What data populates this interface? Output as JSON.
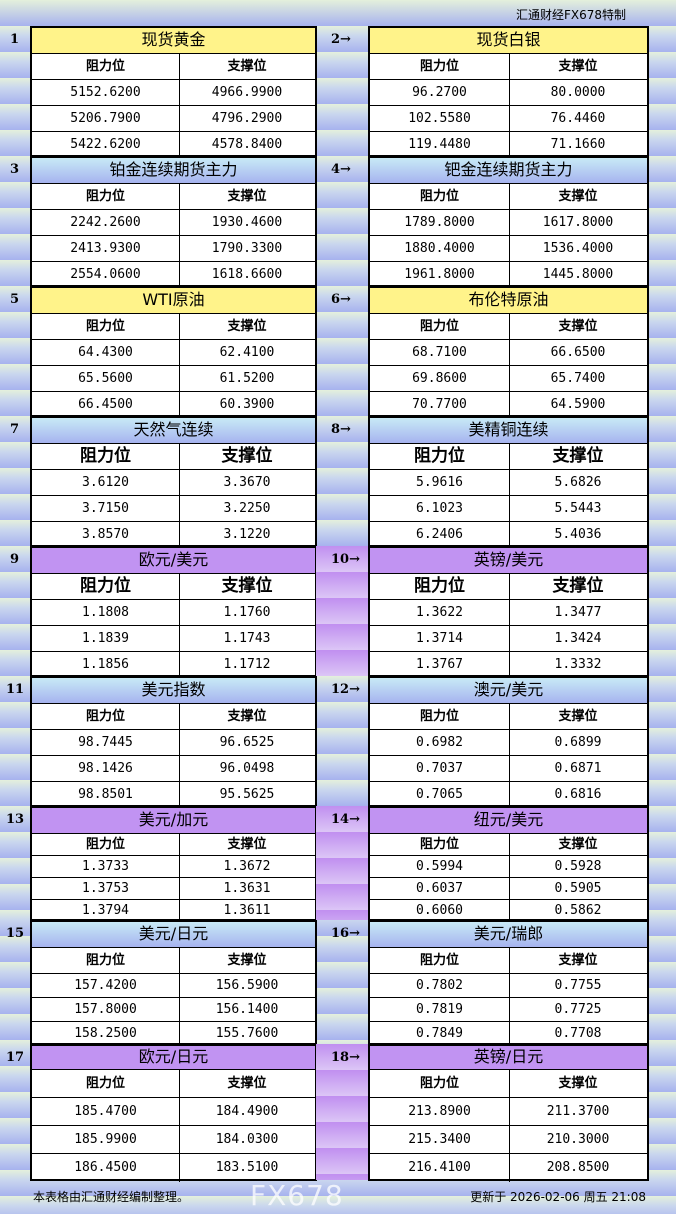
{
  "brand": "汇通财经FX678特制",
  "col_headers": [
    "阻力位",
    "支撑位"
  ],
  "arrow": "→",
  "sections": [
    {
      "num": "1",
      "title": "现货黄金",
      "color": "#fff38a",
      "rows": [
        [
          "5152.6200",
          "4966.9900"
        ],
        [
          "5206.7900",
          "4796.2900"
        ],
        [
          "5422.6200",
          "4578.8400"
        ]
      ]
    },
    {
      "num": "2",
      "title": "现货白银",
      "color": "#fff38a",
      "rows": [
        [
          "96.2700",
          "80.0000"
        ],
        [
          "102.5580",
          "76.4460"
        ],
        [
          "119.4480",
          "71.1660"
        ]
      ]
    },
    {
      "num": "3",
      "title": "铂金连续期货主力",
      "color": "#b6cdf2",
      "rows": [
        [
          "2242.2600",
          "1930.4600"
        ],
        [
          "2413.9300",
          "1790.3300"
        ],
        [
          "2554.0600",
          "1618.6600"
        ]
      ]
    },
    {
      "num": "4",
      "title": "钯金连续期货主力",
      "color": "#b6cdf2",
      "rows": [
        [
          "1789.8000",
          "1617.8000"
        ],
        [
          "1880.4000",
          "1536.4000"
        ],
        [
          "1961.8000",
          "1445.8000"
        ]
      ]
    },
    {
      "num": "5",
      "title": "WTI原油",
      "color": "#fff38a",
      "rows": [
        [
          "64.4300",
          "62.4100"
        ],
        [
          "65.5600",
          "61.5200"
        ],
        [
          "66.4500",
          "60.3900"
        ]
      ]
    },
    {
      "num": "6",
      "title": "布伦特原油",
      "color": "#fff38a",
      "rows": [
        [
          "68.7100",
          "66.6500"
        ],
        [
          "69.8600",
          "65.7400"
        ],
        [
          "70.7700",
          "64.5900"
        ]
      ]
    },
    {
      "num": "7",
      "title": "天然气连续",
      "color": "#b6cdf2",
      "rows": [
        [
          "3.6120",
          "3.3670"
        ],
        [
          "3.7150",
          "3.2250"
        ],
        [
          "3.8570",
          "3.1220"
        ]
      ]
    },
    {
      "num": "8",
      "title": "美精铜连续",
      "color": "#b6cdf2",
      "rows": [
        [
          "5.9616",
          "5.6826"
        ],
        [
          "6.1023",
          "5.5443"
        ],
        [
          "6.2406",
          "5.4036"
        ]
      ]
    },
    {
      "num": "9",
      "title": "欧元/美元",
      "color": "#c193f2",
      "rows": [
        [
          "1.1808",
          "1.1760"
        ],
        [
          "1.1839",
          "1.1743"
        ],
        [
          "1.1856",
          "1.1712"
        ]
      ]
    },
    {
      "num": "10",
      "title": "英镑/美元",
      "color": "#c193f2",
      "rows": [
        [
          "1.3622",
          "1.3477"
        ],
        [
          "1.3714",
          "1.3424"
        ],
        [
          "1.3767",
          "1.3332"
        ]
      ]
    },
    {
      "num": "11",
      "title": "美元指数",
      "color": "#b6cdf2",
      "rows": [
        [
          "98.7445",
          "96.6525"
        ],
        [
          "98.1426",
          "96.0498"
        ],
        [
          "98.8501",
          "95.5625"
        ]
      ]
    },
    {
      "num": "12",
      "title": "澳元/美元",
      "color": "#b6cdf2",
      "rows": [
        [
          "0.6982",
          "0.6899"
        ],
        [
          "0.7037",
          "0.6871"
        ],
        [
          "0.7065",
          "0.6816"
        ]
      ]
    },
    {
      "num": "13",
      "title": "美元/加元",
      "color": "#c193f2",
      "rows": [
        [
          "1.3733",
          "1.3672"
        ],
        [
          "1.3753",
          "1.3631"
        ],
        [
          "1.3794",
          "1.3611"
        ]
      ]
    },
    {
      "num": "14",
      "title": "纽元/美元",
      "color": "#c193f2",
      "rows": [
        [
          "0.5994",
          "0.5928"
        ],
        [
          "0.6037",
          "0.5905"
        ],
        [
          "0.6060",
          "0.5862"
        ]
      ]
    },
    {
      "num": "15",
      "title": "美元/日元",
      "color": "#b6cdf2",
      "rows": [
        [
          "157.4200",
          "156.5900"
        ],
        [
          "157.8000",
          "156.1400"
        ],
        [
          "158.2500",
          "155.7600"
        ]
      ]
    },
    {
      "num": "16",
      "title": "美元/瑞郎",
      "color": "#b6cdf2",
      "rows": [
        [
          "0.7802",
          "0.7755"
        ],
        [
          "0.7819",
          "0.7725"
        ],
        [
          "0.7849",
          "0.7708"
        ]
      ]
    },
    {
      "num": "17",
      "title": "欧元/日元",
      "color": "#c193f2",
      "rows": [
        [
          "185.4700",
          "184.4900"
        ],
        [
          "185.9900",
          "184.0300"
        ],
        [
          "186.4500",
          "183.5100"
        ]
      ]
    },
    {
      "num": "18",
      "title": "英镑/日元",
      "color": "#c193f2",
      "rows": [
        [
          "213.8900",
          "211.3700"
        ],
        [
          "215.3400",
          "210.3000"
        ],
        [
          "216.4100",
          "208.8500"
        ]
      ]
    }
  ],
  "footer": {
    "note": "本表格由汇通财经编制整理。",
    "updated": "更新于 2026-02-06 周五 21:08"
  },
  "watermark": "FX678"
}
